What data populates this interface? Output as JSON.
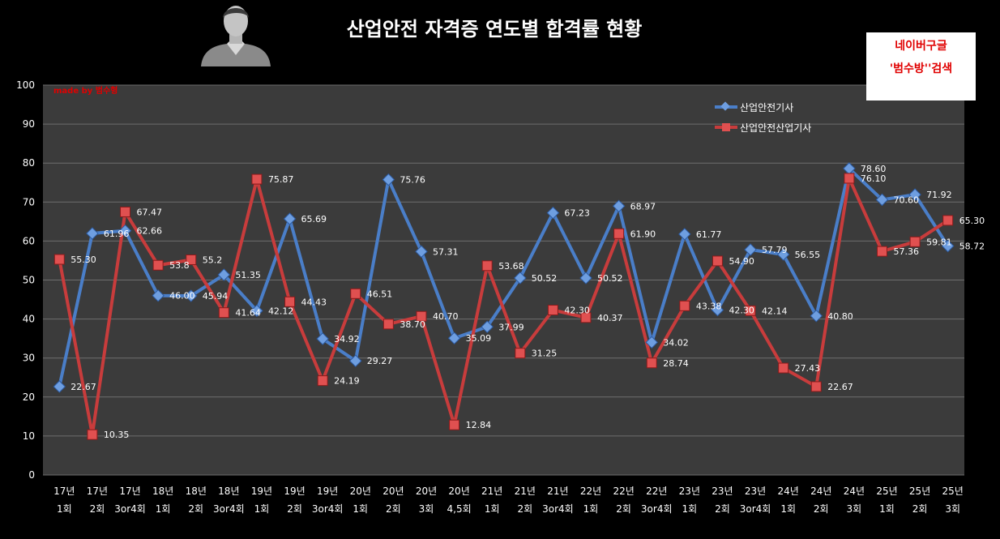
{
  "title": "산업안전 자격증 연도별 합격률 현황",
  "watermark": "made by  범수형",
  "promo": {
    "line1": "네이버구글",
    "line2": "'범수방''검색"
  },
  "colors": {
    "series1": "#4a7ec8",
    "series2": "#c83c3c",
    "plot_bg": "#3b3b3b",
    "grid": "#6e6e6e",
    "text": "#ffffff",
    "promo_text": "#e00000"
  },
  "chart_data": {
    "type": "line",
    "ylim": [
      0,
      100
    ],
    "yticks": [
      0,
      10,
      20,
      30,
      40,
      50,
      60,
      70,
      80,
      90,
      100
    ],
    "grid": true,
    "legend": "top-right",
    "categories": [
      [
        "17년",
        "1회"
      ],
      [
        "17년",
        "2회"
      ],
      [
        "17년",
        "3or4회"
      ],
      [
        "18년",
        "1회"
      ],
      [
        "18년",
        "2회"
      ],
      [
        "18년",
        "3or4회"
      ],
      [
        "19년",
        "1회"
      ],
      [
        "19년",
        "2회"
      ],
      [
        "19년",
        "3or4회"
      ],
      [
        "20년",
        "1회"
      ],
      [
        "20년",
        "2회"
      ],
      [
        "20년",
        "3회"
      ],
      [
        "20년",
        "4,5회"
      ],
      [
        "21년",
        "1회"
      ],
      [
        "21년",
        "2회"
      ],
      [
        "21년",
        "3or4회"
      ],
      [
        "22년",
        "1회"
      ],
      [
        "22년",
        "2회"
      ],
      [
        "22년",
        "3or4회"
      ],
      [
        "23년",
        "1회"
      ],
      [
        "23년",
        "2회"
      ],
      [
        "23년",
        "3or4회"
      ],
      [
        "24년",
        "1회"
      ],
      [
        "24년",
        "2회"
      ],
      [
        "24년",
        "3회"
      ],
      [
        "25년",
        "1회"
      ],
      [
        "25년",
        "2회"
      ],
      [
        "25년",
        "3회"
      ]
    ],
    "series": [
      {
        "name": "산업안전기사",
        "values": [
          22.67,
          61.96,
          62.66,
          46.0,
          45.94,
          51.35,
          42.12,
          65.69,
          34.92,
          29.27,
          75.76,
          57.31,
          35.09,
          37.99,
          50.52,
          67.23,
          50.52,
          68.97,
          34.02,
          61.77,
          42.3,
          57.79,
          56.55,
          40.8,
          78.6,
          70.6,
          71.92,
          58.72
        ],
        "labels": [
          "22.67",
          "61.96",
          "62.66",
          "46.00",
          "45.94",
          "51.35",
          "42.12",
          "65.69",
          "34.92",
          "29.27",
          "75.76",
          "57.31",
          "35.09",
          "37.99",
          "50.52",
          "67.23",
          "50.52",
          "68.97",
          "34.02",
          "61.77",
          "42.30",
          "57.79",
          "56.55",
          "40.80",
          "78.60",
          "70.60",
          "71.92",
          "58.72"
        ]
      },
      {
        "name": "산업안전산업기사",
        "values": [
          55.3,
          10.35,
          67.47,
          53.8,
          55.2,
          41.64,
          75.87,
          44.43,
          24.19,
          46.51,
          38.7,
          40.7,
          12.84,
          53.68,
          31.25,
          42.3,
          40.37,
          61.9,
          28.74,
          43.38,
          54.9,
          42.14,
          27.43,
          22.67,
          76.1,
          57.36,
          59.81,
          65.3
        ],
        "labels": [
          "55.30",
          "10.35",
          "67.47",
          "53.8",
          "55.2",
          "41.64",
          "75.87",
          "44.43",
          "24.19",
          "46.51",
          "38.70",
          "40.70",
          "12.84",
          "53.68",
          "31.25",
          "42.30",
          "40.37",
          "61.90",
          "28.74",
          "43.38",
          "54.90",
          "42.14",
          "27.43",
          "22.67",
          "76.10",
          "57.36",
          "59.81",
          "65.30"
        ]
      }
    ]
  }
}
